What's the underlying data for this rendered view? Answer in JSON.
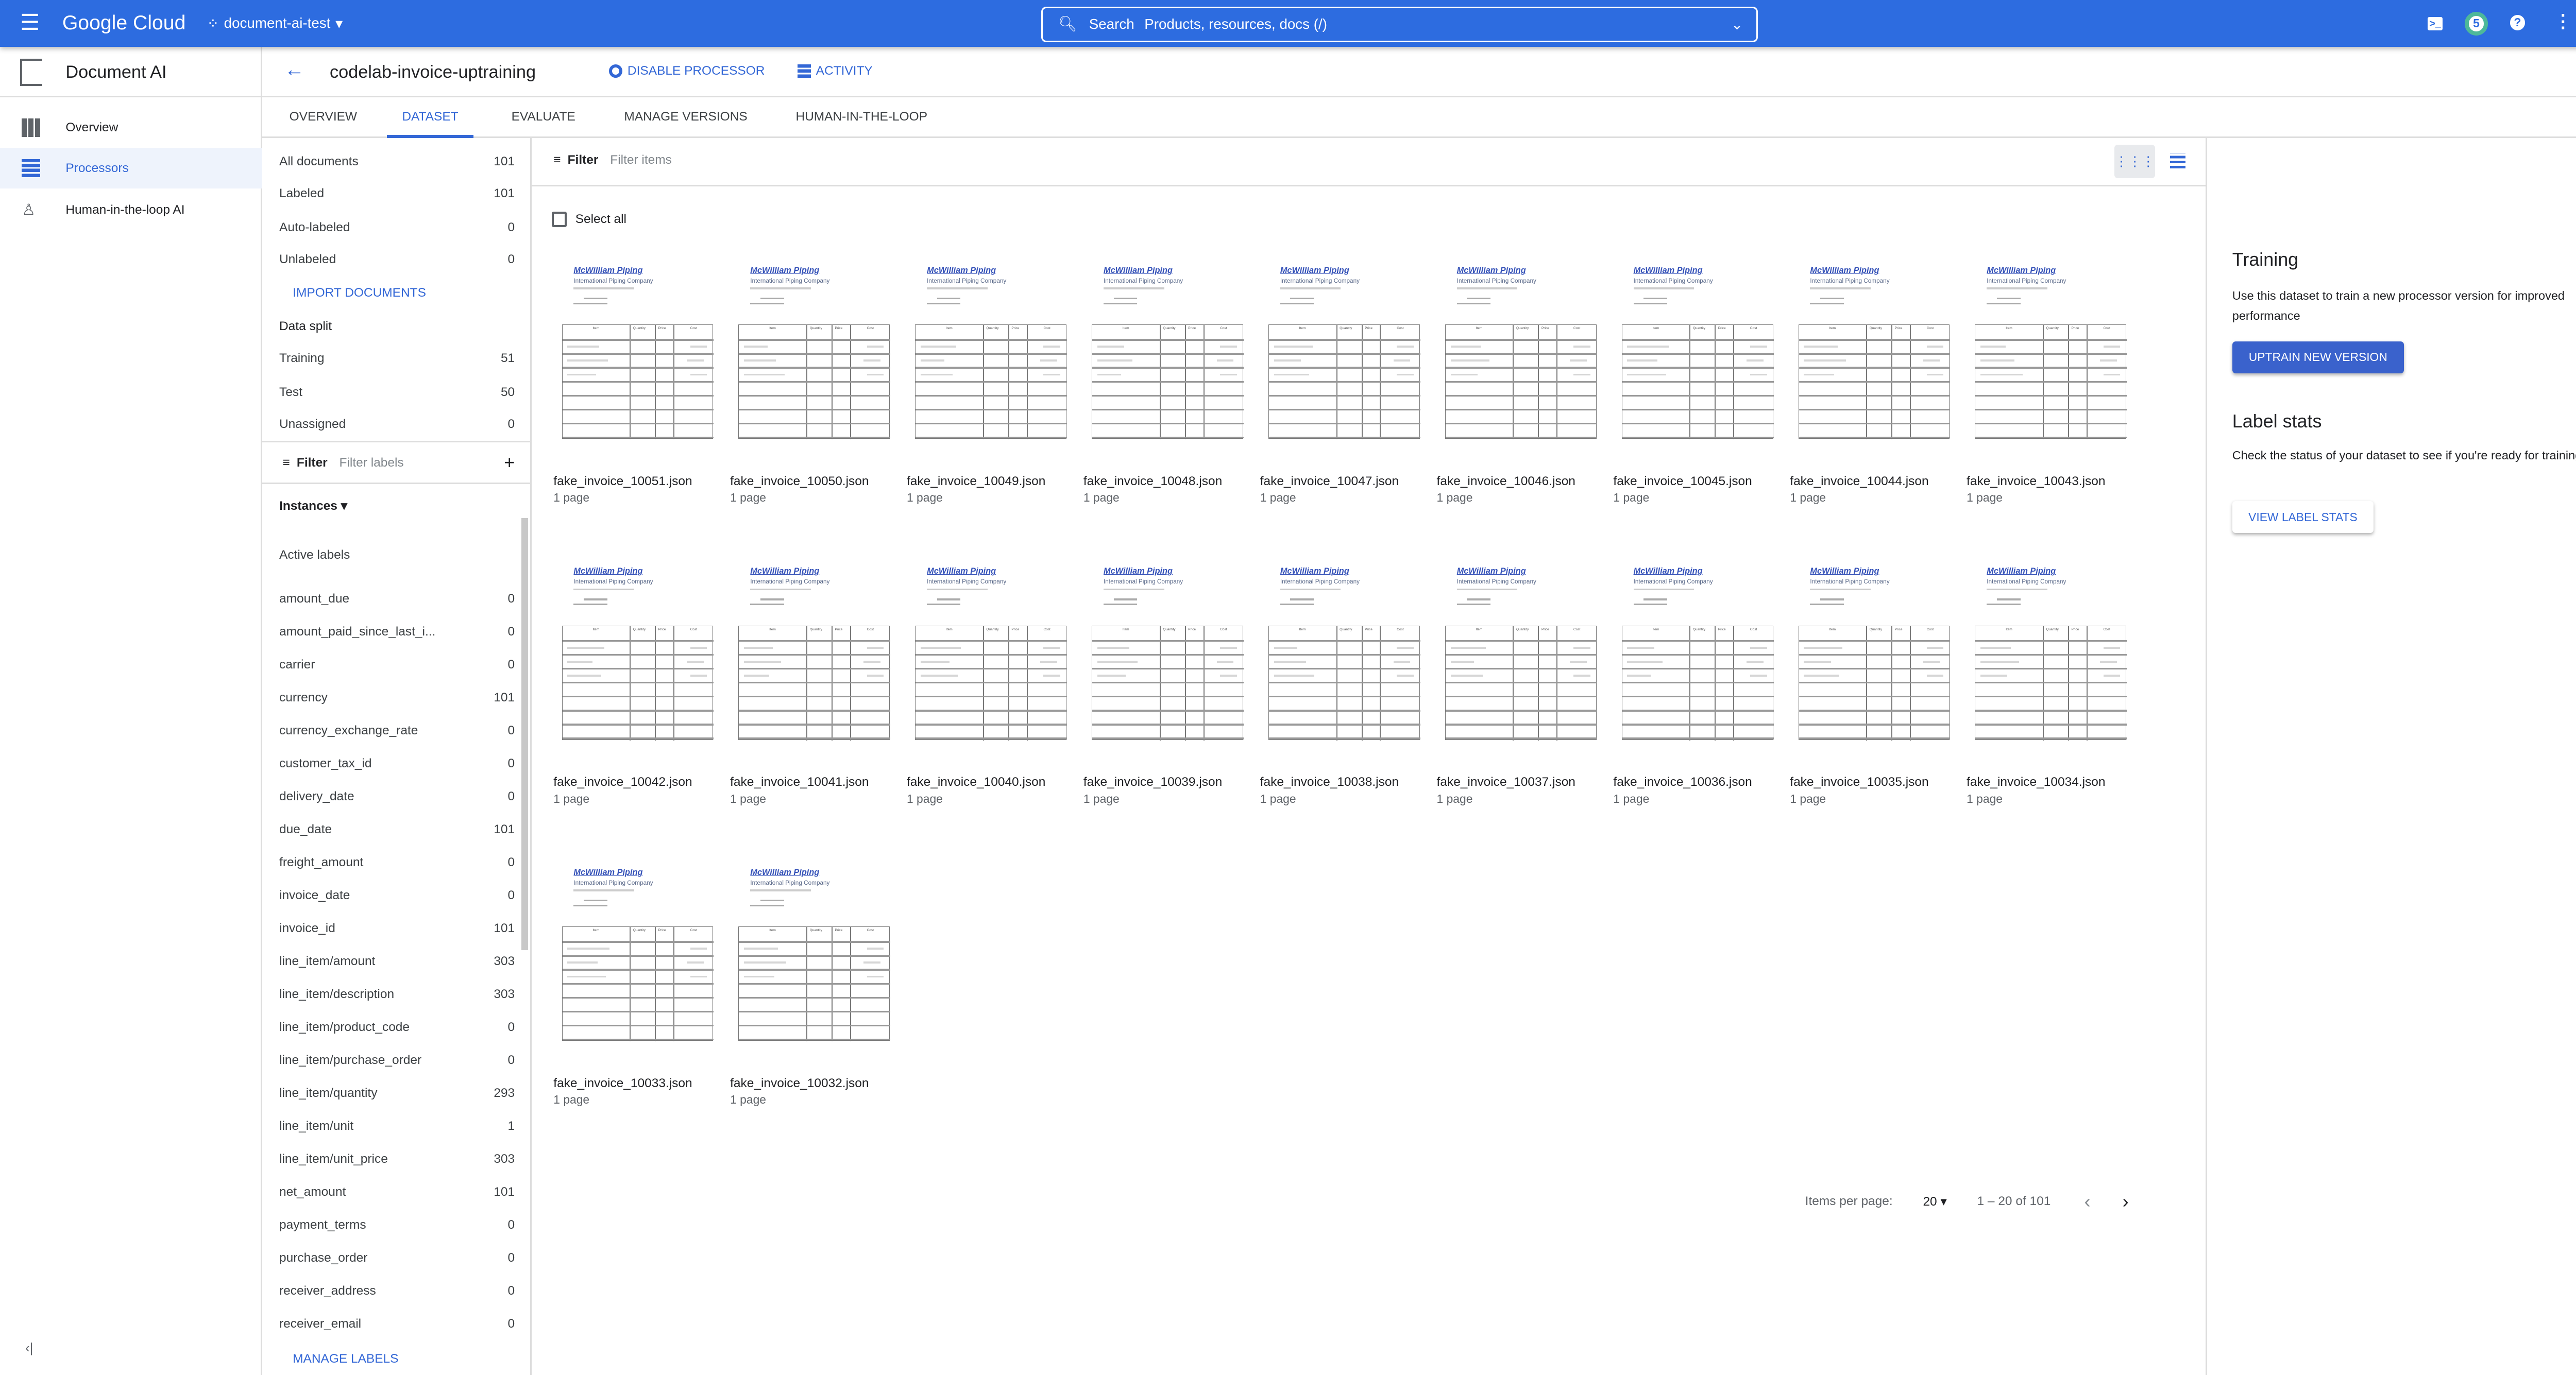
{
  "topbar": {
    "brand": "Google Cloud",
    "project": "document-ai-test",
    "search_label": "Search",
    "search_placeholder": "Products, resources, docs (/)",
    "notifications_count": "5",
    "colors": {
      "bar": "#2d6ce0",
      "badge_ring": "#4db89a"
    }
  },
  "nav": {
    "product": "Document AI",
    "items": [
      {
        "label": "Overview",
        "icon": "dashboard-icon"
      },
      {
        "label": "Processors",
        "icon": "processor-icon",
        "selected": true
      },
      {
        "label": "Human-in-the-loop AI",
        "icon": "person-check-icon"
      }
    ]
  },
  "header": {
    "title": "codelab-invoice-uptraining",
    "disable": "DISABLE PROCESSOR",
    "activity": "ACTIVITY"
  },
  "tabs": [
    "OVERVIEW",
    "DATASET",
    "EVALUATE",
    "MANAGE VERSIONS",
    "HUMAN-IN-THE-LOOP"
  ],
  "active_tab": "DATASET",
  "stats": [
    {
      "label": "All documents",
      "count": "101"
    },
    {
      "label": "Labeled",
      "count": "101"
    },
    {
      "label": "Auto-labeled",
      "count": "0"
    },
    {
      "label": "Unlabeled",
      "count": "0"
    }
  ],
  "import_docs": "IMPORT DOCUMENTS",
  "data_split": {
    "title": "Data split",
    "rows": [
      {
        "label": "Training",
        "count": "51"
      },
      {
        "label": "Test",
        "count": "50"
      },
      {
        "label": "Unassigned",
        "count": "0"
      }
    ]
  },
  "label_filter": {
    "label": "Filter",
    "placeholder": "Filter labels"
  },
  "instances": "Instances",
  "active_labels": "Active labels",
  "labels": [
    {
      "label": "amount_due",
      "count": "0"
    },
    {
      "label": "amount_paid_since_last_i...",
      "count": "0"
    },
    {
      "label": "carrier",
      "count": "0"
    },
    {
      "label": "currency",
      "count": "101"
    },
    {
      "label": "currency_exchange_rate",
      "count": "0"
    },
    {
      "label": "customer_tax_id",
      "count": "0"
    },
    {
      "label": "delivery_date",
      "count": "0"
    },
    {
      "label": "due_date",
      "count": "101"
    },
    {
      "label": "freight_amount",
      "count": "0"
    },
    {
      "label": "invoice_date",
      "count": "0"
    },
    {
      "label": "invoice_id",
      "count": "101"
    },
    {
      "label": "line_item/amount",
      "count": "303"
    },
    {
      "label": "line_item/description",
      "count": "303"
    },
    {
      "label": "line_item/product_code",
      "count": "0"
    },
    {
      "label": "line_item/purchase_order",
      "count": "0"
    },
    {
      "label": "line_item/quantity",
      "count": "293"
    },
    {
      "label": "line_item/unit",
      "count": "1"
    },
    {
      "label": "line_item/unit_price",
      "count": "303"
    },
    {
      "label": "net_amount",
      "count": "101"
    },
    {
      "label": "payment_terms",
      "count": "0"
    },
    {
      "label": "purchase_order",
      "count": "0"
    },
    {
      "label": "receiver_address",
      "count": "0"
    },
    {
      "label": "receiver_email",
      "count": "0"
    }
  ],
  "manage_labels": "MANAGE LABELS",
  "items_filter": {
    "label": "Filter",
    "placeholder": "Filter items"
  },
  "select_all": "Select all",
  "thumbnail": {
    "company": "McWilliam Piping",
    "subtitle": "International Piping Company",
    "columns": [
      "Item",
      "Quantity",
      "Price",
      "Cost"
    ]
  },
  "documents": [
    {
      "name": "fake_invoice_10051.json",
      "pages": "1 page"
    },
    {
      "name": "fake_invoice_10050.json",
      "pages": "1 page"
    },
    {
      "name": "fake_invoice_10049.json",
      "pages": "1 page"
    },
    {
      "name": "fake_invoice_10048.json",
      "pages": "1 page"
    },
    {
      "name": "fake_invoice_10047.json",
      "pages": "1 page"
    },
    {
      "name": "fake_invoice_10046.json",
      "pages": "1 page"
    },
    {
      "name": "fake_invoice_10045.json",
      "pages": "1 page"
    },
    {
      "name": "fake_invoice_10044.json",
      "pages": "1 page"
    },
    {
      "name": "fake_invoice_10043.json",
      "pages": "1 page"
    },
    {
      "name": "fake_invoice_10042.json",
      "pages": "1 page"
    },
    {
      "name": "fake_invoice_10041.json",
      "pages": "1 page"
    },
    {
      "name": "fake_invoice_10040.json",
      "pages": "1 page"
    },
    {
      "name": "fake_invoice_10039.json",
      "pages": "1 page"
    },
    {
      "name": "fake_invoice_10038.json",
      "pages": "1 page"
    },
    {
      "name": "fake_invoice_10037.json",
      "pages": "1 page"
    },
    {
      "name": "fake_invoice_10036.json",
      "pages": "1 page"
    },
    {
      "name": "fake_invoice_10035.json",
      "pages": "1 page"
    },
    {
      "name": "fake_invoice_10034.json",
      "pages": "1 page"
    },
    {
      "name": "fake_invoice_10033.json",
      "pages": "1 page"
    },
    {
      "name": "fake_invoice_10032.json",
      "pages": "1 page"
    }
  ],
  "pagination": {
    "items_per_page_label": "Items per page:",
    "items_per_page": "20",
    "range": "1 – 20 of 101"
  },
  "right_panel": {
    "training_title": "Training",
    "training_text": "Use this dataset to train a new processor version for improved performance",
    "uptrain": "UPTRAIN NEW VERSION",
    "label_stats_title": "Label stats",
    "label_stats_text": "Check the status of your dataset to see if you're ready for training",
    "view_stats": "VIEW LABEL STATS"
  }
}
